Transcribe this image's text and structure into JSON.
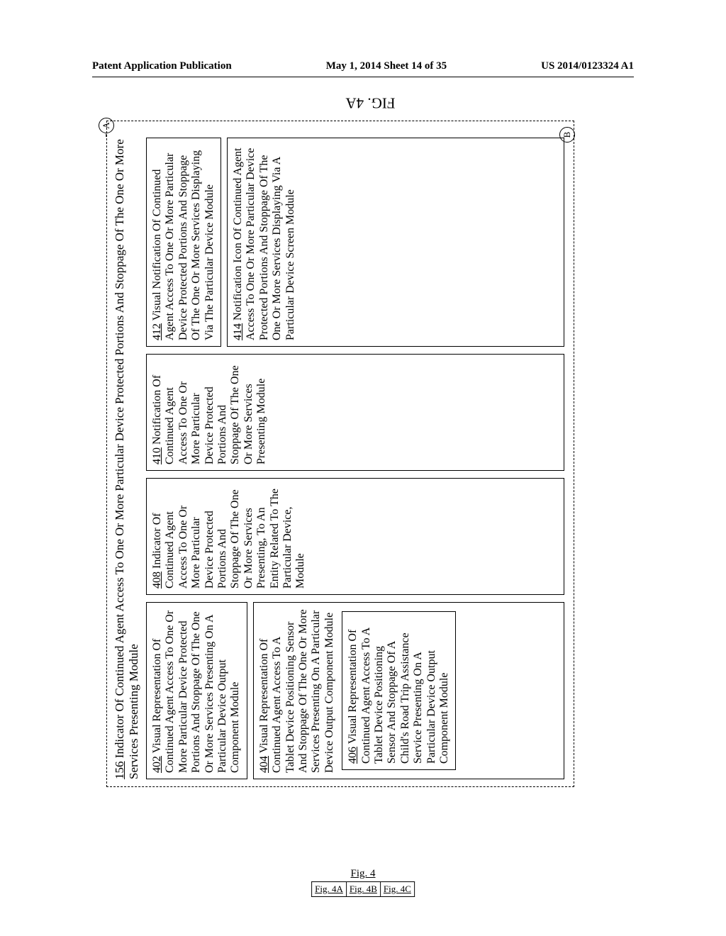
{
  "header": {
    "left": "Patent Application Publication",
    "center": "May 1, 2014  Sheet 14 of 35",
    "right": "US 2014/0123324 A1"
  },
  "figure_label": "FIG. 4A",
  "connectors": {
    "a": "A",
    "b": "B"
  },
  "outer": {
    "ref": "156",
    "title_rest": " Indicator Of Continued Agent Access To One Or More Particular Device Protected Portions And Stoppage Of The One Or More Services Presenting Module"
  },
  "box402": {
    "ref": "402",
    "text": " Visual Representation Of Continued Agent Access To One Or More Particular Device Protected Portions And Stoppage Of The One Or More Services Presenting On A Particular Device Output Component Module"
  },
  "box404": {
    "ref": "404",
    "text": " Visual Representation Of Continued Agent Access To A Tablet Device Positioning Sensor And Stoppage Of The One Or More Services Presenting On A Particular Device Output Component Module"
  },
  "box406": {
    "ref": "406",
    "text": " Visual Representation Of Continued Agent Access To A Tablet Device Positioning Sensor And Stoppage Of A Child's Road Trip Assistance Service Presenting On A Particular Device Output Component Module"
  },
  "box408": {
    "ref": "408",
    "text": " Indicator Of Continued Agent Access To One Or More Particular Device Protected Portions And Stoppage Of The One Or More Services Presenting, To An Entity Related To The Particular Device, Module"
  },
  "box410": {
    "ref": "410",
    "text": " Notification Of Continued Agent Access To One Or More Particular Device Protected Portions And Stoppage Of The One Or More Services Presenting Module"
  },
  "box412": {
    "ref": "412",
    "text": " Visual Notification Of Continued Agent Access To One Or More Particular Device Protected Portions And Stoppage Of The One Or More Services Displaying Via The Particular Device Module"
  },
  "box414": {
    "ref": "414",
    "text": " Notification Icon Of Continued Agent Access To One Or More Particular Device Protected Portions And Stoppage Of The One Or More Services Displaying Via A Particular Device Screen Module"
  },
  "keymap": {
    "title": "Fig. 4",
    "cells": [
      "Fig. 4A",
      "Fig. 4B",
      "Fig. 4C"
    ]
  }
}
